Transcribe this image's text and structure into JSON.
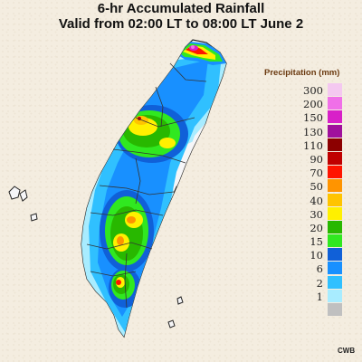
{
  "title": {
    "line1": "6-hr Accumulated Rainfall",
    "line2": "Valid from 02:00 LT to 08:00 LT June 2"
  },
  "legend": {
    "title": "Precipitation (mm)",
    "items": [
      {
        "label": "300",
        "color": "#f4c8f0"
      },
      {
        "label": "200",
        "color": "#f070e8"
      },
      {
        "label": "150",
        "color": "#d820c8"
      },
      {
        "label": "130",
        "color": "#a0109c"
      },
      {
        "label": "110",
        "color": "#8c0000"
      },
      {
        "label": "90",
        "color": "#c00000"
      },
      {
        "label": "70",
        "color": "#ff1400"
      },
      {
        "label": "50",
        "color": "#ff9400"
      },
      {
        "label": "40",
        "color": "#ffc400"
      },
      {
        "label": "30",
        "color": "#fff000"
      },
      {
        "label": "20",
        "color": "#28b800"
      },
      {
        "label": "15",
        "color": "#30e820"
      },
      {
        "label": "10",
        "color": "#1060d8"
      },
      {
        "label": "6",
        "color": "#1890ff"
      },
      {
        "label": "2",
        "color": "#30c0ff"
      },
      {
        "label": "1",
        "color": "#a8ecff"
      },
      {
        "label": "",
        "color": "#c0c0c0"
      }
    ]
  },
  "credit": "CWB"
}
